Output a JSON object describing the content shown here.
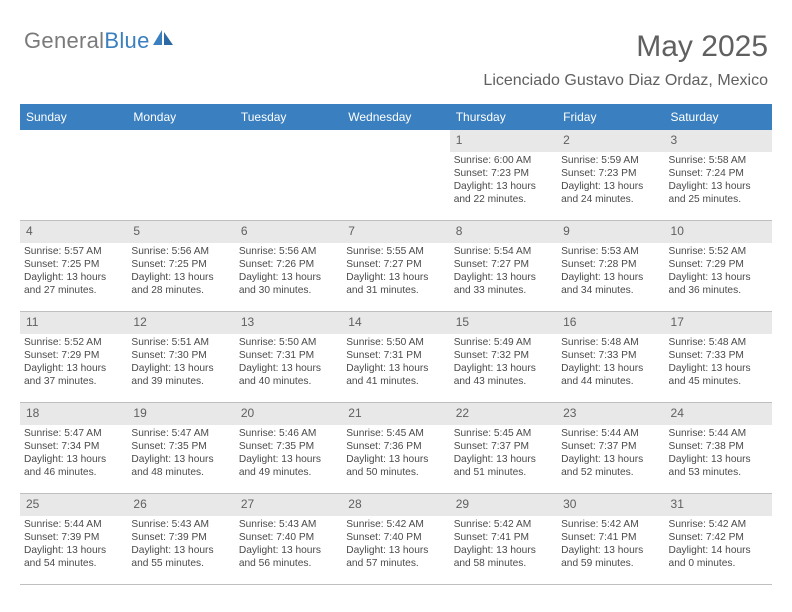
{
  "logo": {
    "textGray": "General",
    "textBlue": "Blue"
  },
  "header": {
    "monthTitle": "May 2025",
    "location": "Licenciado Gustavo Diaz Ordaz, Mexico"
  },
  "dayNames": [
    "Sunday",
    "Monday",
    "Tuesday",
    "Wednesday",
    "Thursday",
    "Friday",
    "Saturday"
  ],
  "colors": {
    "headerBar": "#3a7fbf",
    "dayNumBg": "#e8e8e8",
    "text": "#4a4a4a",
    "titleText": "#606060",
    "borderColor": "#bfbfbf"
  },
  "weeks": [
    [
      null,
      null,
      null,
      null,
      {
        "n": "1",
        "sunrise": "6:00 AM",
        "sunset": "7:23 PM",
        "daylight": "13 hours and 22 minutes."
      },
      {
        "n": "2",
        "sunrise": "5:59 AM",
        "sunset": "7:23 PM",
        "daylight": "13 hours and 24 minutes."
      },
      {
        "n": "3",
        "sunrise": "5:58 AM",
        "sunset": "7:24 PM",
        "daylight": "13 hours and 25 minutes."
      }
    ],
    [
      {
        "n": "4",
        "sunrise": "5:57 AM",
        "sunset": "7:25 PM",
        "daylight": "13 hours and 27 minutes."
      },
      {
        "n": "5",
        "sunrise": "5:56 AM",
        "sunset": "7:25 PM",
        "daylight": "13 hours and 28 minutes."
      },
      {
        "n": "6",
        "sunrise": "5:56 AM",
        "sunset": "7:26 PM",
        "daylight": "13 hours and 30 minutes."
      },
      {
        "n": "7",
        "sunrise": "5:55 AM",
        "sunset": "7:27 PM",
        "daylight": "13 hours and 31 minutes."
      },
      {
        "n": "8",
        "sunrise": "5:54 AM",
        "sunset": "7:27 PM",
        "daylight": "13 hours and 33 minutes."
      },
      {
        "n": "9",
        "sunrise": "5:53 AM",
        "sunset": "7:28 PM",
        "daylight": "13 hours and 34 minutes."
      },
      {
        "n": "10",
        "sunrise": "5:52 AM",
        "sunset": "7:29 PM",
        "daylight": "13 hours and 36 minutes."
      }
    ],
    [
      {
        "n": "11",
        "sunrise": "5:52 AM",
        "sunset": "7:29 PM",
        "daylight": "13 hours and 37 minutes."
      },
      {
        "n": "12",
        "sunrise": "5:51 AM",
        "sunset": "7:30 PM",
        "daylight": "13 hours and 39 minutes."
      },
      {
        "n": "13",
        "sunrise": "5:50 AM",
        "sunset": "7:31 PM",
        "daylight": "13 hours and 40 minutes."
      },
      {
        "n": "14",
        "sunrise": "5:50 AM",
        "sunset": "7:31 PM",
        "daylight": "13 hours and 41 minutes."
      },
      {
        "n": "15",
        "sunrise": "5:49 AM",
        "sunset": "7:32 PM",
        "daylight": "13 hours and 43 minutes."
      },
      {
        "n": "16",
        "sunrise": "5:48 AM",
        "sunset": "7:33 PM",
        "daylight": "13 hours and 44 minutes."
      },
      {
        "n": "17",
        "sunrise": "5:48 AM",
        "sunset": "7:33 PM",
        "daylight": "13 hours and 45 minutes."
      }
    ],
    [
      {
        "n": "18",
        "sunrise": "5:47 AM",
        "sunset": "7:34 PM",
        "daylight": "13 hours and 46 minutes."
      },
      {
        "n": "19",
        "sunrise": "5:47 AM",
        "sunset": "7:35 PM",
        "daylight": "13 hours and 48 minutes."
      },
      {
        "n": "20",
        "sunrise": "5:46 AM",
        "sunset": "7:35 PM",
        "daylight": "13 hours and 49 minutes."
      },
      {
        "n": "21",
        "sunrise": "5:45 AM",
        "sunset": "7:36 PM",
        "daylight": "13 hours and 50 minutes."
      },
      {
        "n": "22",
        "sunrise": "5:45 AM",
        "sunset": "7:37 PM",
        "daylight": "13 hours and 51 minutes."
      },
      {
        "n": "23",
        "sunrise": "5:44 AM",
        "sunset": "7:37 PM",
        "daylight": "13 hours and 52 minutes."
      },
      {
        "n": "24",
        "sunrise": "5:44 AM",
        "sunset": "7:38 PM",
        "daylight": "13 hours and 53 minutes."
      }
    ],
    [
      {
        "n": "25",
        "sunrise": "5:44 AM",
        "sunset": "7:39 PM",
        "daylight": "13 hours and 54 minutes."
      },
      {
        "n": "26",
        "sunrise": "5:43 AM",
        "sunset": "7:39 PM",
        "daylight": "13 hours and 55 minutes."
      },
      {
        "n": "27",
        "sunrise": "5:43 AM",
        "sunset": "7:40 PM",
        "daylight": "13 hours and 56 minutes."
      },
      {
        "n": "28",
        "sunrise": "5:42 AM",
        "sunset": "7:40 PM",
        "daylight": "13 hours and 57 minutes."
      },
      {
        "n": "29",
        "sunrise": "5:42 AM",
        "sunset": "7:41 PM",
        "daylight": "13 hours and 58 minutes."
      },
      {
        "n": "30",
        "sunrise": "5:42 AM",
        "sunset": "7:41 PM",
        "daylight": "13 hours and 59 minutes."
      },
      {
        "n": "31",
        "sunrise": "5:42 AM",
        "sunset": "7:42 PM",
        "daylight": "14 hours and 0 minutes."
      }
    ]
  ]
}
